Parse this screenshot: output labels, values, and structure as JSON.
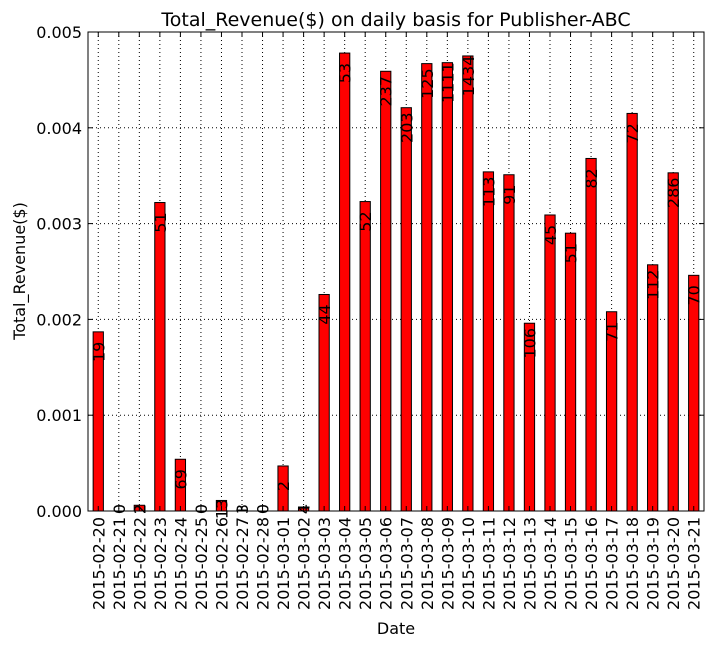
{
  "chart_data": {
    "type": "bar",
    "title": "Total_Revenue($) on daily basis for Publisher-ABC",
    "xlabel": "Date",
    "ylabel": "Total_Revenue($)",
    "ylim": [
      0,
      0.005
    ],
    "yticks": [
      "0.000",
      "0.001",
      "0.002",
      "0.003",
      "0.004",
      "0.005"
    ],
    "grid": true,
    "bar_color": "#ff0000",
    "categories": [
      "2015-02-20",
      "2015-02-21",
      "2015-02-22",
      "2015-02-23",
      "2015-02-24",
      "2015-02-25",
      "2015-02-26",
      "2015-02-27",
      "2015-02-28",
      "2015-03-01",
      "2015-03-02",
      "2015-03-03",
      "2015-03-04",
      "2015-03-05",
      "2015-03-06",
      "2015-03-07",
      "2015-03-08",
      "2015-03-09",
      "2015-03-10",
      "2015-03-11",
      "2015-03-12",
      "2015-03-13",
      "2015-03-14",
      "2015-03-15",
      "2015-03-16",
      "2015-03-17",
      "2015-03-18",
      "2015-03-19",
      "2015-03-20",
      "2015-03-21"
    ],
    "values": [
      0.00187,
      0.0,
      6e-05,
      0.00322,
      0.00054,
      0.0,
      0.00011,
      1e-05,
      0.0,
      0.00047,
      3e-05,
      0.00226,
      0.00478,
      0.00323,
      0.00459,
      0.00421,
      0.00467,
      0.00468,
      0.00475,
      0.00354,
      0.00351,
      0.00196,
      0.00309,
      0.0029,
      0.00368,
      0.00208,
      0.00415,
      0.00257,
      0.00353,
      0.00246
    ],
    "bar_labels": [
      "19",
      "0",
      "2",
      "51",
      "69",
      "0",
      "13",
      "3",
      "0",
      "2",
      "4",
      "44",
      "53",
      "52",
      "237",
      "203",
      "125",
      "1111",
      "1434",
      "113",
      "91",
      "106",
      "45",
      "51",
      "82",
      "71",
      "72",
      "112",
      "286",
      "70"
    ]
  }
}
